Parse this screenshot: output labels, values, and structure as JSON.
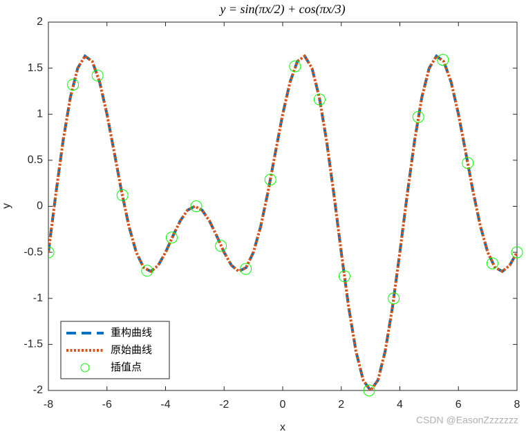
{
  "chart_data": {
    "type": "line",
    "title": "y = sin(πx/2) + cos(πx/3)",
    "x_label": "x",
    "y_label": "y",
    "watermark": "CSDN @EasonZzzzzzz",
    "xlim": [
      -8,
      8
    ],
    "ylim": [
      -2,
      2
    ],
    "xticks": [
      -8,
      -6,
      -4,
      -2,
      0,
      2,
      4,
      6,
      8
    ],
    "yticks": [
      -2,
      -1.5,
      -1,
      -0.5,
      0,
      0.5,
      1,
      1.5,
      2
    ],
    "grid": false,
    "legend": "lower-left",
    "x": [
      -8,
      -7.75,
      -7.5,
      -7.25,
      -7,
      -6.75,
      -6.5,
      -6.25,
      -6,
      -5.75,
      -5.5,
      -5.25,
      -5,
      -4.75,
      -4.5,
      -4.25,
      -4,
      -3.75,
      -3.5,
      -3.25,
      -3,
      -2.75,
      -2.5,
      -2.25,
      -2,
      -1.75,
      -1.5,
      -1.25,
      -1,
      -0.75,
      -0.5,
      -0.25,
      0,
      0.25,
      0.5,
      0.75,
      1,
      1.25,
      1.5,
      1.75,
      2,
      2.25,
      2.5,
      2.75,
      3,
      3.25,
      3.5,
      3.75,
      4,
      4.25,
      4.5,
      4.75,
      5,
      5.25,
      5.5,
      5.75,
      6,
      6.25,
      6.5,
      6.75,
      7,
      7.25,
      7.5,
      7.75,
      8
    ],
    "series": [
      {
        "name": "重构曲线",
        "color": "#0072BD",
        "linestyle": "dashed",
        "marker": "none",
        "values": [
          -0.5,
          0.1239,
          0.7071,
          1.1827,
          1.5,
          1.631,
          1.5731,
          1.3486,
          1,
          0.5832,
          0.1589,
          -0.2168,
          -0.5,
          -0.6651,
          -0.7071,
          -0.6415,
          -0.5,
          -0.3244,
          -0.1589,
          -0.042,
          0,
          -0.042,
          -0.1589,
          -0.3244,
          -0.5,
          -0.6415,
          -0.7071,
          -0.6651,
          -0.5,
          -0.2168,
          0.1589,
          0.5832,
          1,
          1.3486,
          1.5731,
          1.631,
          1.5,
          1.1827,
          0.7071,
          0.1239,
          -0.5,
          -1.0898,
          -1.5731,
          -1.8898,
          -2,
          -1.8898,
          -1.5731,
          -1.0898,
          -0.5,
          0.1239,
          0.7071,
          1.1827,
          1.5,
          1.631,
          1.5731,
          1.3486,
          1,
          0.5832,
          0.1589,
          -0.2168,
          -0.5,
          -0.6651,
          -0.7071,
          -0.6415,
          -0.5
        ]
      },
      {
        "name": "原始曲线",
        "color": "#D95319",
        "linestyle": "dotted",
        "marker": "none",
        "values": [
          -0.5,
          0.1239,
          0.7071,
          1.1827,
          1.5,
          1.631,
          1.5731,
          1.3486,
          1,
          0.5832,
          0.1589,
          -0.2168,
          -0.5,
          -0.6651,
          -0.7071,
          -0.6415,
          -0.5,
          -0.3244,
          -0.1589,
          -0.042,
          0,
          -0.042,
          -0.1589,
          -0.3244,
          -0.5,
          -0.6415,
          -0.7071,
          -0.6651,
          -0.5,
          -0.2168,
          0.1589,
          0.5832,
          1,
          1.3486,
          1.5731,
          1.631,
          1.5,
          1.1827,
          0.7071,
          0.1239,
          -0.5,
          -1.0898,
          -1.5731,
          -1.8898,
          -2,
          -1.8898,
          -1.5731,
          -1.0898,
          -0.5,
          0.1239,
          0.7071,
          1.1827,
          1.5,
          1.631,
          1.5731,
          1.3486,
          1,
          0.5832,
          0.1589,
          -0.2168,
          -0.5,
          -0.6651,
          -0.7071,
          -0.6415,
          -0.5
        ]
      },
      {
        "name": "插值点",
        "color": "#00FF00",
        "linestyle": "none",
        "marker": "circle",
        "x": [
          -8,
          -7.16,
          -6.32,
          -5.47,
          -4.63,
          -3.79,
          -2.95,
          -2.11,
          -1.26,
          -0.42,
          0.42,
          1.26,
          2.11,
          2.95,
          3.79,
          4.63,
          5.47,
          6.32,
          7.16,
          8
        ],
        "values": [
          -0.5,
          1.32,
          1.42,
          0.12,
          -0.7,
          -0.34,
          0,
          -0.43,
          -0.68,
          0.29,
          1.52,
          1.16,
          -0.76,
          -2,
          -1,
          0.97,
          1.59,
          0.47,
          -0.62,
          -0.5
        ]
      }
    ]
  }
}
